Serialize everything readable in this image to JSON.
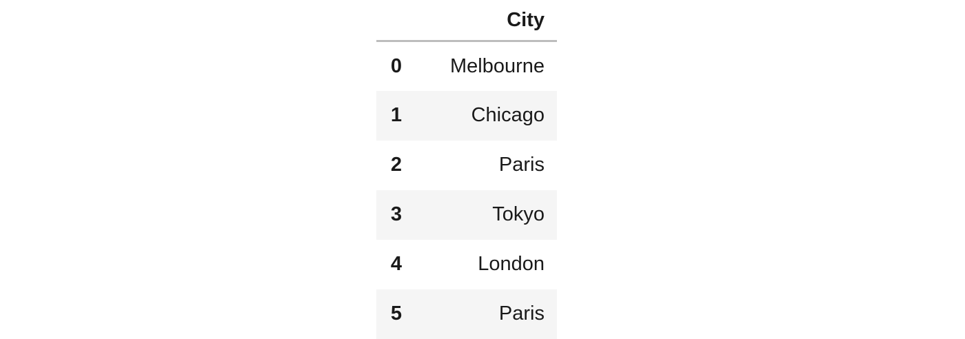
{
  "table": {
    "columns": [
      "City"
    ],
    "rows": [
      {
        "index": "0",
        "city": "Melbourne"
      },
      {
        "index": "1",
        "city": "Chicago"
      },
      {
        "index": "2",
        "city": "Paris"
      },
      {
        "index": "3",
        "city": "Tokyo"
      },
      {
        "index": "4",
        "city": "London"
      },
      {
        "index": "5",
        "city": "Paris"
      }
    ]
  },
  "colors": {
    "stripe": "#f5f5f5",
    "header_rule": "#bdbdbd",
    "text": "#1a1a1a"
  }
}
